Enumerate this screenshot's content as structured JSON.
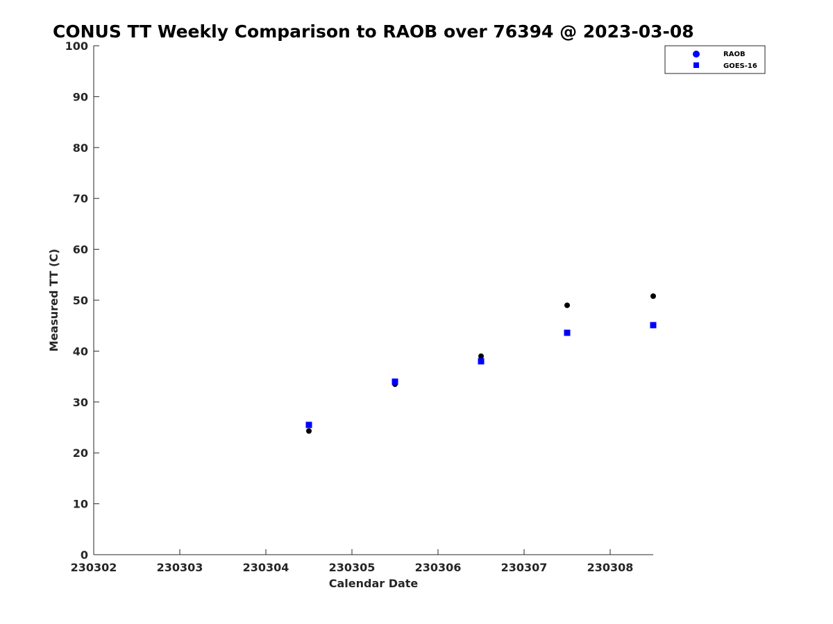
{
  "chart_data": {
    "type": "scatter",
    "title": "CONUS TT Weekly Comparison to RAOB over 76394 @ 2023-03-08",
    "xlabel": "Calendar Date",
    "ylabel": "Measured TT (C)",
    "x_tick_labels": [
      "230302",
      "230303",
      "230304",
      "230305",
      "230306",
      "230307",
      "230308"
    ],
    "y_ticks": [
      0,
      10,
      20,
      30,
      40,
      50,
      60,
      70,
      80,
      90,
      100
    ],
    "ylim": [
      0,
      100
    ],
    "grid": false,
    "legend_position": "top-right",
    "series": [
      {
        "name": "RAOB",
        "marker": "circle",
        "color": "#000000",
        "legend_color": "#0000ff",
        "points": [
          {
            "x": "230304.5",
            "y": 24.3
          },
          {
            "x": "230305.5",
            "y": 33.5
          },
          {
            "x": "230306.5",
            "y": 39.0
          },
          {
            "x": "230307.5",
            "y": 49.0
          },
          {
            "x": "230308.5",
            "y": 50.8
          }
        ]
      },
      {
        "name": "GOES-16",
        "marker": "square",
        "color": "#0000ff",
        "legend_color": "#0000ff",
        "points": [
          {
            "x": "230304.5",
            "y": 25.5
          },
          {
            "x": "230305.5",
            "y": 34.0
          },
          {
            "x": "230306.5",
            "y": 38.0
          },
          {
            "x": "230307.5",
            "y": 43.6
          },
          {
            "x": "230308.5",
            "y": 45.1
          }
        ]
      }
    ]
  }
}
